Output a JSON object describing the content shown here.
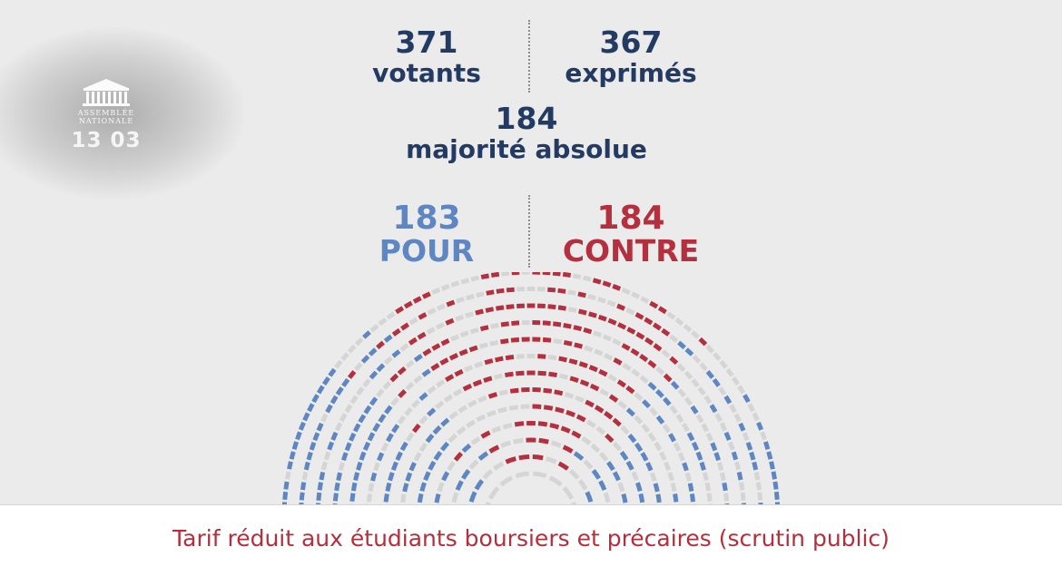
{
  "logo": {
    "text_line1": "ASSEMBLÉE",
    "text_line2": "NATIONALE",
    "date": "13 03"
  },
  "stats": {
    "votants": {
      "value": "371",
      "label": "votants"
    },
    "exprimes": {
      "value": "367",
      "label": "exprimés"
    },
    "majorite": {
      "value": "184",
      "label": "majorité absolue"
    }
  },
  "results": {
    "pour": {
      "value": "183",
      "label": "POUR",
      "color": "#5e86c2"
    },
    "contre": {
      "value": "184",
      "label": "CONTRE",
      "color": "#b4303f"
    }
  },
  "hemicycle": {
    "neutral_color": "#d5d5d5",
    "pour_color": "#5e86c2",
    "contre_color": "#b4303f"
  },
  "caption": "Tarif réduit aux étudiants boursiers et précaires (scrutin public)"
}
